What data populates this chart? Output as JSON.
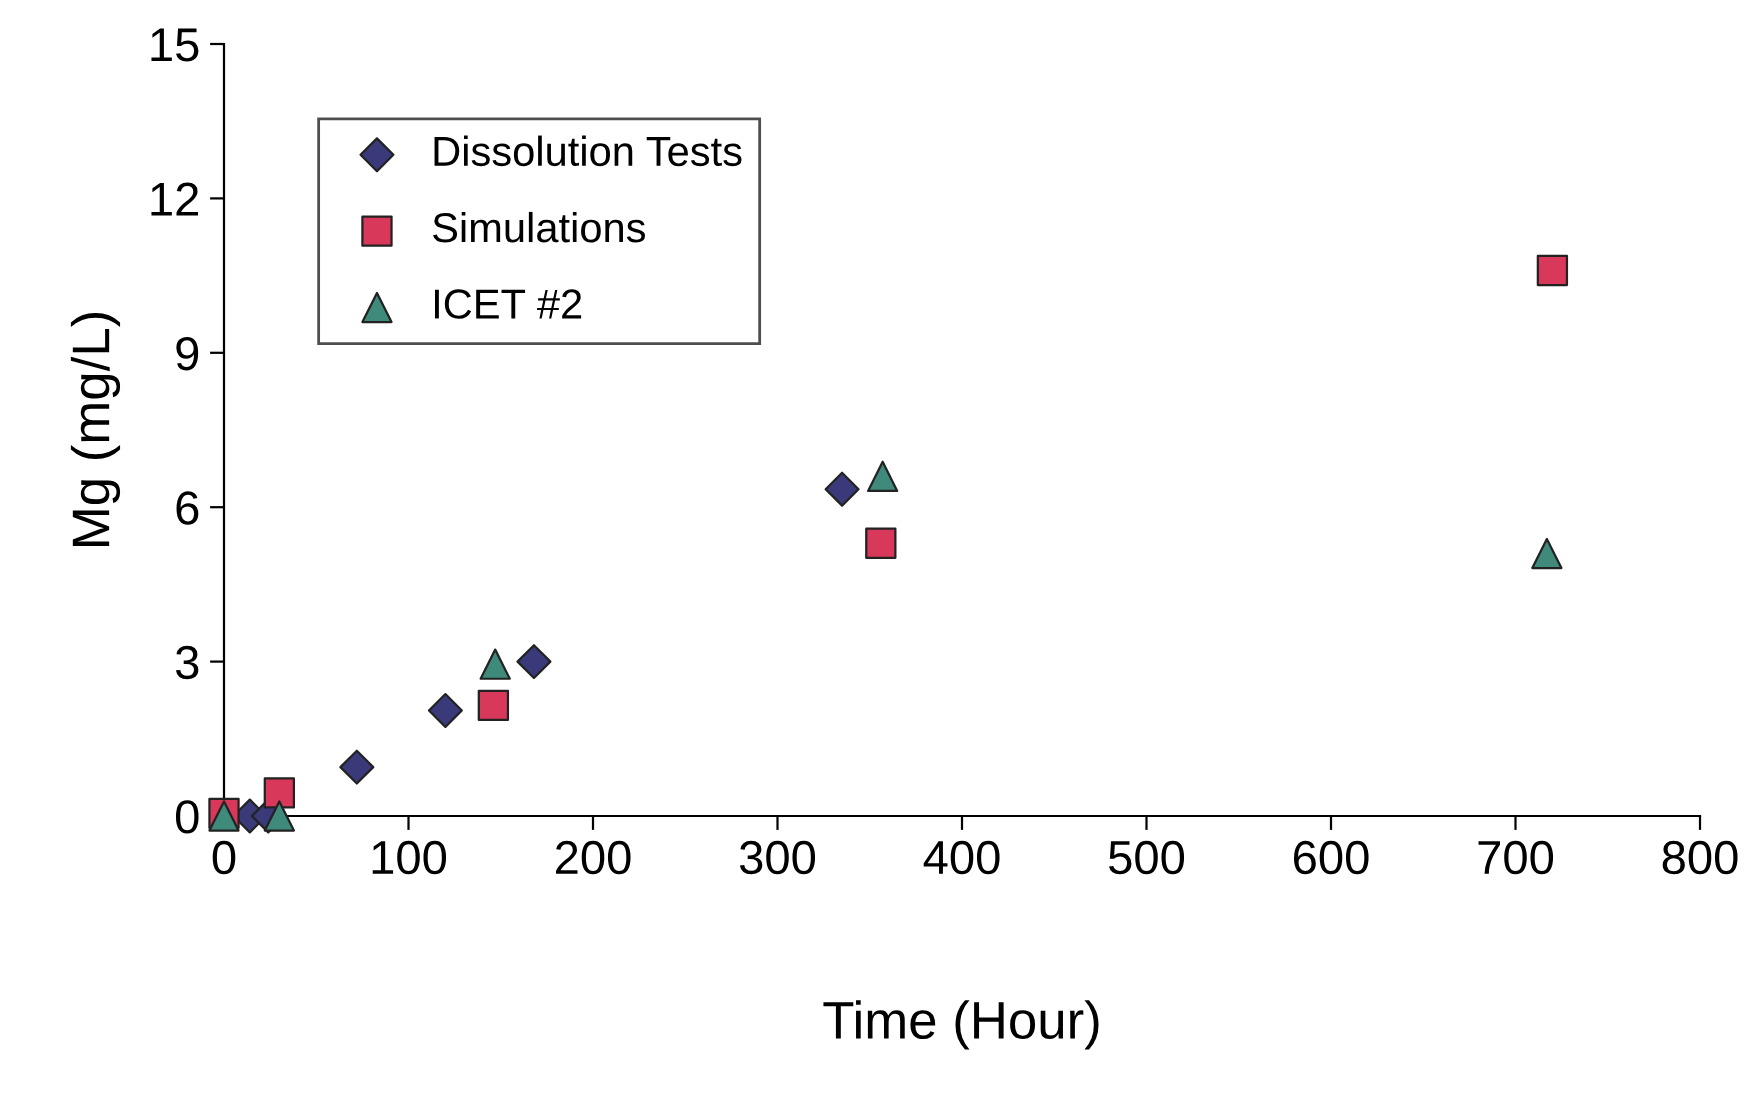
{
  "chart_data": {
    "type": "scatter",
    "xlabel": "Time (Hour)",
    "ylabel": "Mg (mg/L)",
    "xlim": [
      0,
      800
    ],
    "xticks": [
      0,
      100,
      200,
      300,
      400,
      500,
      600,
      700,
      800
    ],
    "ylim": [
      0,
      15
    ],
    "yticks": [
      0,
      3,
      6,
      9,
      12,
      15
    ],
    "grid": false,
    "legend": "top left",
    "series": [
      {
        "name": "Dissolution Tests",
        "color": "#3a3a7a",
        "marker": "diamond",
        "x": [
          14,
          24,
          72,
          120,
          168,
          335
        ],
        "values": [
          0.0,
          0.0,
          0.95,
          2.05,
          3.0,
          6.35
        ]
      },
      {
        "name": "Simulations",
        "color": "#d8385a",
        "marker": "square",
        "x": [
          0,
          30,
          146,
          356,
          720
        ],
        "values": [
          0.05,
          0.45,
          2.15,
          5.3,
          10.6
        ]
      },
      {
        "name": "ICET #2",
        "color": "#3f8a7a",
        "marker": "triangle",
        "x": [
          0,
          30,
          147,
          357,
          717
        ],
        "values": [
          0.0,
          0.0,
          2.95,
          6.6,
          5.1
        ]
      }
    ]
  }
}
